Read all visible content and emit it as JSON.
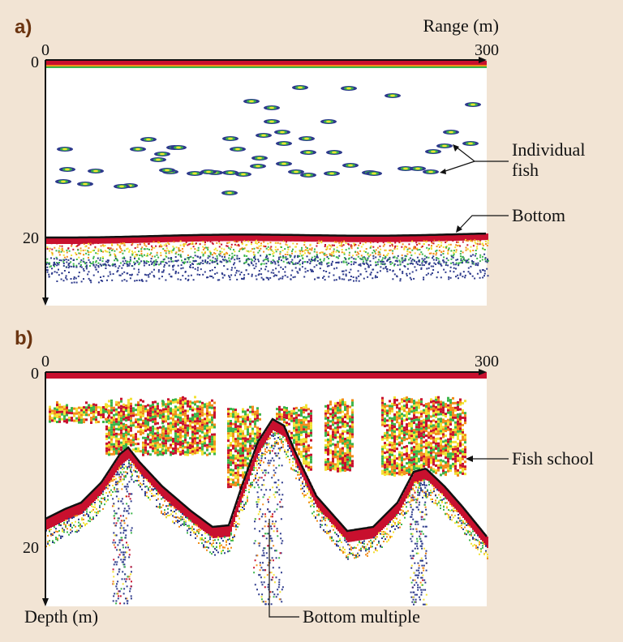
{
  "panel_a": {
    "letter": "a)",
    "axis_title": "Range (m)",
    "x_ticks": [
      "0",
      "300"
    ],
    "y_ticks": [
      "0",
      "20"
    ],
    "annotations": [
      "Individual",
      "fish",
      "Bottom"
    ]
  },
  "panel_b": {
    "letter": "b)",
    "x_ticks": [
      "0",
      "300"
    ],
    "y_ticks": [
      "0",
      "20"
    ],
    "depth_label": "Depth (m)",
    "annotations": [
      "Fish school",
      "Bottom multiple"
    ]
  },
  "colors": {
    "background": "#f2e4d4",
    "plot_bg": "#ffffff",
    "echo_red": "#c8102e",
    "echo_orange": "#f28c1a",
    "echo_yellow": "#f2e233",
    "echo_green": "#3bb54a",
    "echo_blue": "#2d3a8c",
    "bottom_line": "#111111",
    "letter": "#6b3410"
  }
}
